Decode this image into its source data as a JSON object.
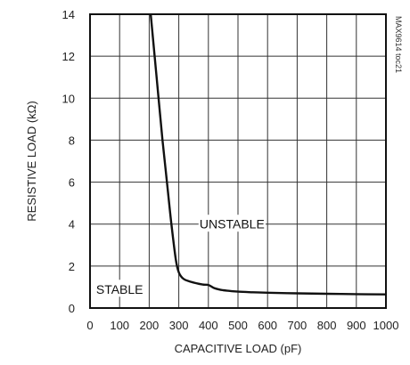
{
  "chart_data": {
    "type": "line",
    "title": "",
    "xlabel": "CAPACITIVE LOAD (pF)",
    "ylabel": "RESISTIVE LOAD (kΩ)",
    "xlim": [
      0,
      1000
    ],
    "ylim": [
      0,
      14
    ],
    "x_ticks": [
      0,
      100,
      200,
      300,
      400,
      500,
      600,
      700,
      800,
      900,
      1000
    ],
    "y_ticks": [
      0,
      2,
      4,
      6,
      8,
      10,
      12,
      14
    ],
    "grid": true,
    "legend": "none",
    "series": [
      {
        "color": "#111111",
        "x": [
          205,
          225,
          245,
          260,
          275,
          290,
          300,
          315,
          340,
          380,
          400,
          420,
          450,
          500,
          550,
          600,
          700,
          800,
          900,
          1000
        ],
        "y": [
          14,
          11,
          8,
          6,
          4,
          2.3,
          1.7,
          1.4,
          1.25,
          1.12,
          1.1,
          0.95,
          0.85,
          0.78,
          0.75,
          0.73,
          0.7,
          0.68,
          0.66,
          0.65
        ]
      }
    ],
    "annotations": [
      {
        "text": "UNSTABLE",
        "x": 480,
        "y": 4
      },
      {
        "text": "STABLE",
        "x": 100,
        "y": 0.9
      }
    ],
    "corner_code": "MAX9614 toc21"
  }
}
